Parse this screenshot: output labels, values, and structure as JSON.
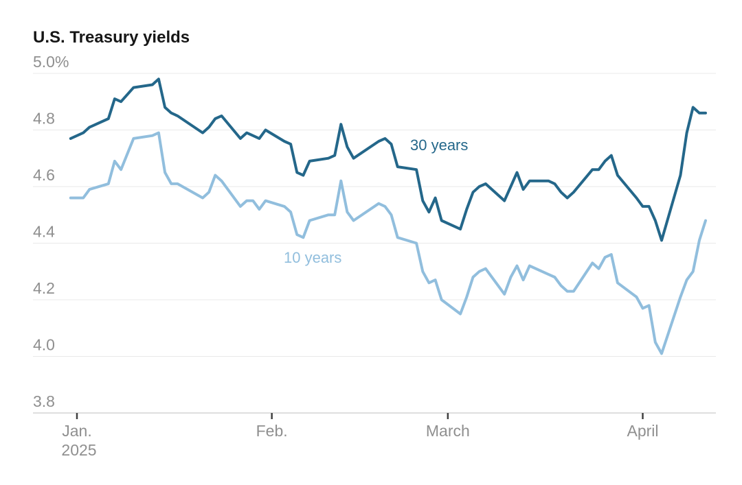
{
  "title": "U.S. Treasury yields",
  "chart_data": {
    "type": "line",
    "title": "U.S. Treasury yields",
    "unit": "%",
    "grid": "horizontal-only",
    "legend_position": "inline-labels-on-lines",
    "y_axis": {
      "range": [
        3.8,
        5.0
      ],
      "ticks": [
        {
          "value": 5.0,
          "label": "5.0%"
        },
        {
          "value": 4.8,
          "label": "4.8"
        },
        {
          "value": 4.6,
          "label": "4.6"
        },
        {
          "value": 4.4,
          "label": "4.4"
        },
        {
          "value": 4.2,
          "label": "4.2"
        },
        {
          "value": 4.0,
          "label": "4.0"
        },
        {
          "value": 3.8,
          "label": "3.8"
        }
      ]
    },
    "x_axis": {
      "ticks": [
        {
          "date": "2025-01-01",
          "label": "Jan.",
          "sublabel": "2025"
        },
        {
          "date": "2025-02-01",
          "label": "Feb."
        },
        {
          "date": "2025-03-01",
          "label": "March"
        },
        {
          "date": "2025-04-01",
          "label": "April"
        }
      ]
    },
    "dates": [
      "2024-12-31",
      "2025-01-02",
      "2025-01-03",
      "2025-01-06",
      "2025-01-07",
      "2025-01-08",
      "2025-01-10",
      "2025-01-13",
      "2025-01-14",
      "2025-01-15",
      "2025-01-16",
      "2025-01-17",
      "2025-01-21",
      "2025-01-22",
      "2025-01-23",
      "2025-01-24",
      "2025-01-27",
      "2025-01-28",
      "2025-01-29",
      "2025-01-30",
      "2025-01-31",
      "2025-02-03",
      "2025-02-04",
      "2025-02-05",
      "2025-02-06",
      "2025-02-07",
      "2025-02-10",
      "2025-02-11",
      "2025-02-12",
      "2025-02-13",
      "2025-02-14",
      "2025-02-18",
      "2025-02-19",
      "2025-02-20",
      "2025-02-21",
      "2025-02-24",
      "2025-02-25",
      "2025-02-26",
      "2025-02-27",
      "2025-02-28",
      "2025-03-03",
      "2025-03-04",
      "2025-03-05",
      "2025-03-06",
      "2025-03-07",
      "2025-03-10",
      "2025-03-11",
      "2025-03-12",
      "2025-03-13",
      "2025-03-14",
      "2025-03-17",
      "2025-03-18",
      "2025-03-19",
      "2025-03-20",
      "2025-03-21",
      "2025-03-24",
      "2025-03-25",
      "2025-03-26",
      "2025-03-27",
      "2025-03-28",
      "2025-03-31",
      "2025-04-01",
      "2025-04-02",
      "2025-04-03",
      "2025-04-04",
      "2025-04-07",
      "2025-04-08",
      "2025-04-09",
      "2025-04-10",
      "2025-04-11"
    ],
    "series": [
      {
        "name": "30 years",
        "color": "#24678a",
        "label_x": 597,
        "label_y": 219,
        "values": [
          4.77,
          4.79,
          4.81,
          4.84,
          4.91,
          4.9,
          4.95,
          4.96,
          4.98,
          4.88,
          4.86,
          4.85,
          4.79,
          4.81,
          4.84,
          4.85,
          4.77,
          4.79,
          4.78,
          4.77,
          4.8,
          4.76,
          4.75,
          4.65,
          4.64,
          4.69,
          4.7,
          4.71,
          4.82,
          4.74,
          4.7,
          4.76,
          4.77,
          4.75,
          4.67,
          4.66,
          4.55,
          4.51,
          4.56,
          4.48,
          4.45,
          4.52,
          4.58,
          4.6,
          4.61,
          4.55,
          4.6,
          4.65,
          4.59,
          4.62,
          4.62,
          4.61,
          4.58,
          4.56,
          4.58,
          4.66,
          4.66,
          4.69,
          4.71,
          4.64,
          4.56,
          4.53,
          4.53,
          4.48,
          4.41,
          4.64,
          4.79,
          4.88,
          4.86,
          4.86
        ]
      },
      {
        "name": "10 years",
        "color": "#91bedd",
        "label_x": 413,
        "label_y": 383,
        "values": [
          4.56,
          4.56,
          4.59,
          4.61,
          4.69,
          4.66,
          4.77,
          4.78,
          4.79,
          4.65,
          4.61,
          4.61,
          4.56,
          4.58,
          4.64,
          4.62,
          4.53,
          4.55,
          4.55,
          4.52,
          4.55,
          4.53,
          4.51,
          4.43,
          4.42,
          4.48,
          4.5,
          4.5,
          4.62,
          4.51,
          4.48,
          4.54,
          4.53,
          4.5,
          4.42,
          4.4,
          4.3,
          4.26,
          4.27,
          4.2,
          4.15,
          4.21,
          4.28,
          4.3,
          4.31,
          4.22,
          4.28,
          4.32,
          4.27,
          4.32,
          4.29,
          4.28,
          4.25,
          4.23,
          4.23,
          4.33,
          4.31,
          4.35,
          4.36,
          4.26,
          4.21,
          4.17,
          4.18,
          4.05,
          4.01,
          4.21,
          4.27,
          4.3,
          4.41,
          4.48
        ]
      }
    ]
  },
  "colors": {
    "title_text": "#161616",
    "axis_text": "#8f8f8f",
    "grid_line": "#e9e9e9",
    "axis_line": "#d4d4d4",
    "tick_mark": "#404040",
    "background": "#ffffff"
  }
}
